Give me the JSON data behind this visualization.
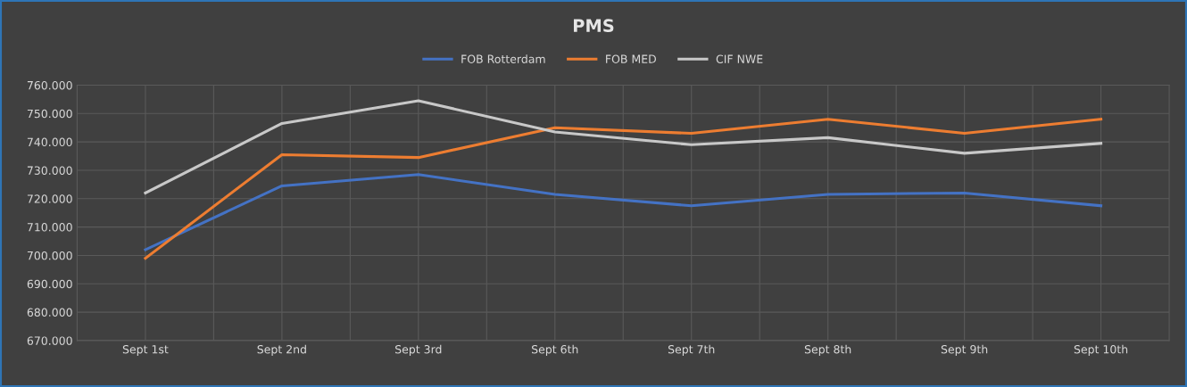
{
  "chart_data": {
    "type": "line",
    "title": "PMS",
    "categories": [
      "Sept 1st",
      "Sept 2nd",
      "Sept 3rd",
      "Sept 6th",
      "Sept 7th",
      "Sept 8th",
      "Sept 9th",
      "Sept 10th"
    ],
    "series": [
      {
        "name": "FOB Rotterdam",
        "color": "#4472c4",
        "values": [
          702,
          724.5,
          728.5,
          721.5,
          717.5,
          721.5,
          722,
          717.5
        ]
      },
      {
        "name": "FOB MED",
        "color": "#ed7d31",
        "values": [
          699,
          735.5,
          734.5,
          745,
          743,
          748,
          743,
          748
        ]
      },
      {
        "name": "CIF NWE",
        "color": "#c8c8c8",
        "values": [
          722,
          746.5,
          754.5,
          743.5,
          739,
          741.5,
          736,
          739.5
        ]
      }
    ],
    "ylim": [
      670,
      760
    ],
    "yticks": [
      {
        "value": 670,
        "label": "670.000"
      },
      {
        "value": 680,
        "label": "680.000"
      },
      {
        "value": 690,
        "label": "690.000"
      },
      {
        "value": 700,
        "label": "700.000"
      },
      {
        "value": 710,
        "label": "710.000"
      },
      {
        "value": 720,
        "label": "720.000"
      },
      {
        "value": 730,
        "label": "730.000"
      },
      {
        "value": 740,
        "label": "740.000"
      },
      {
        "value": 750,
        "label": "750.000"
      },
      {
        "value": 760,
        "label": "760.000"
      }
    ],
    "grid": true,
    "legend": "top",
    "marker": "none",
    "line_style": "solid"
  }
}
